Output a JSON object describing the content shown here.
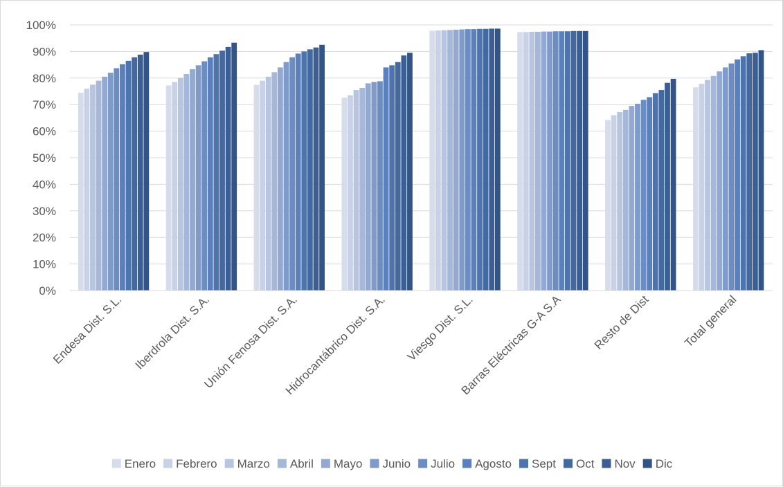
{
  "chart_data": {
    "type": "bar",
    "categories": [
      "Endesa Dist. S.L.",
      "Iberdrola Dist. S.A.",
      "Unión Fenosa Dist. S.A.",
      "Hidrocantábrico Dist. S.A.",
      "Viesgo Dist. S.L.",
      "Barras Eléctricas G-A S.A",
      "Resto de Dist",
      "Total general"
    ],
    "series": [
      {
        "name": "Enero",
        "color": "#d6dcec",
        "values": [
          0.745,
          0.772,
          0.774,
          0.726,
          0.978,
          0.973,
          0.642,
          0.765
        ]
      },
      {
        "name": "Febrero",
        "color": "#c8d1e6",
        "values": [
          0.76,
          0.785,
          0.79,
          0.735,
          0.979,
          0.973,
          0.66,
          0.778
        ]
      },
      {
        "name": "Marzo",
        "color": "#b8c5e0",
        "values": [
          0.775,
          0.8,
          0.805,
          0.755,
          0.98,
          0.974,
          0.672,
          0.793
        ]
      },
      {
        "name": "Abril",
        "color": "#a6b8d9",
        "values": [
          0.79,
          0.815,
          0.822,
          0.763,
          0.981,
          0.974,
          0.68,
          0.808
        ]
      },
      {
        "name": "Mayo",
        "color": "#93a9d1",
        "values": [
          0.805,
          0.833,
          0.84,
          0.78,
          0.982,
          0.975,
          0.695,
          0.825
        ]
      },
      {
        "name": "Junio",
        "color": "#7f9bca",
        "values": [
          0.82,
          0.848,
          0.86,
          0.785,
          0.983,
          0.975,
          0.703,
          0.84
        ]
      },
      {
        "name": "Julio",
        "color": "#6c8dc3",
        "values": [
          0.837,
          0.863,
          0.878,
          0.788,
          0.984,
          0.976,
          0.718,
          0.855
        ]
      },
      {
        "name": "Agosto",
        "color": "#5b80bb",
        "values": [
          0.852,
          0.878,
          0.892,
          0.84,
          0.984,
          0.976,
          0.728,
          0.87
        ]
      },
      {
        "name": "Sept",
        "color": "#4e74ad",
        "values": [
          0.865,
          0.89,
          0.9,
          0.848,
          0.985,
          0.976,
          0.743,
          0.882
        ]
      },
      {
        "name": "Oct",
        "color": "#44699f",
        "values": [
          0.878,
          0.903,
          0.908,
          0.86,
          0.985,
          0.977,
          0.755,
          0.893
        ]
      },
      {
        "name": "Nov",
        "color": "#3b5f93",
        "values": [
          0.888,
          0.917,
          0.915,
          0.885,
          0.986,
          0.977,
          0.782,
          0.895
        ]
      },
      {
        "name": "Dic",
        "color": "#335486",
        "values": [
          0.898,
          0.933,
          0.925,
          0.895,
          0.986,
          0.977,
          0.797,
          0.905
        ]
      }
    ],
    "ylim": [
      0,
      1
    ],
    "yticks": [
      "0%",
      "10%",
      "20%",
      "30%",
      "40%",
      "50%",
      "60%",
      "70%",
      "80%",
      "90%",
      "100%"
    ],
    "grid": true,
    "legend_position": "bottom",
    "gridline_color": "#d9d9d9",
    "text_color": "#595959",
    "title": "",
    "xlabel": "",
    "ylabel": ""
  }
}
